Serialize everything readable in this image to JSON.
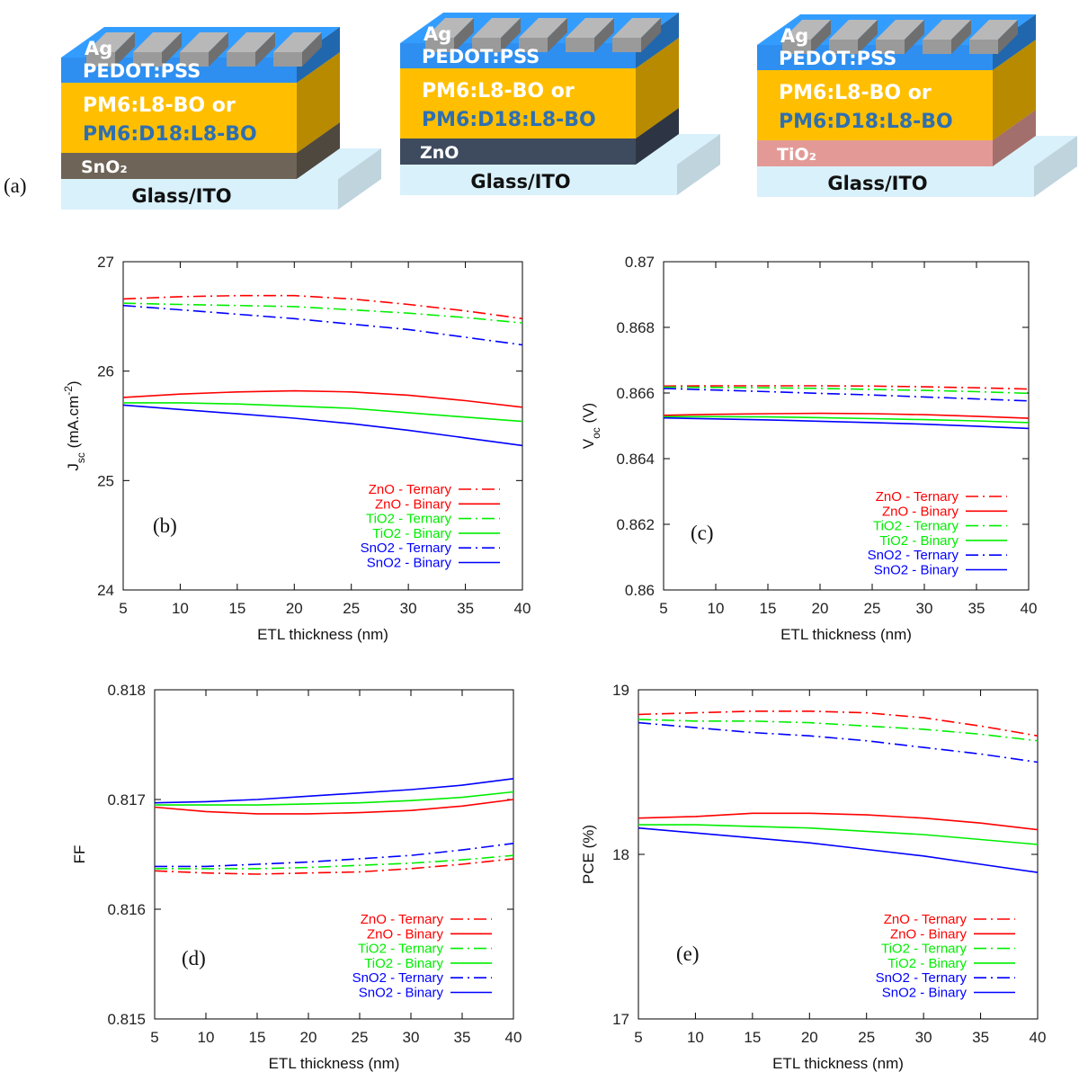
{
  "panel_a": {
    "label": "(a)",
    "devices": [
      {
        "etl": "SnO₂",
        "etl_color": "#6e6457",
        "etl_text_color": "#ffffff",
        "active_line1": "PM6:L8-BO or",
        "active_line2": "PM6:D18:L8-BO"
      },
      {
        "etl": "ZnO",
        "etl_color": "#3e4a5e",
        "etl_text_color": "#ffffff",
        "active_line1": "PM6:L8-BO or",
        "active_line2": "PM6:D18:L8-BO"
      },
      {
        "etl": "TiO₂",
        "etl_color": "#e39a96",
        "etl_text_color": "#ffffff",
        "active_line1": "PM6:L8-BO or",
        "active_line2": "PM6:D18:L8-BO"
      }
    ],
    "layers": {
      "top": "Ag",
      "htl": "PEDOT:PSS",
      "substrate": "Glass/ITO"
    },
    "colors": {
      "htl": "#2e8ff0",
      "active": "#ffbf00",
      "glass": "#d9f1fb",
      "ag": "#9a9a9a",
      "active_text2": "#2f6fb0"
    }
  },
  "series_styles": [
    {
      "key": "zno_t",
      "color": "#ff0000",
      "dash": "dashdot"
    },
    {
      "key": "zno_b",
      "color": "#ff0000",
      "dash": "solid"
    },
    {
      "key": "tio_t",
      "color": "#00ee00",
      "dash": "dashdot"
    },
    {
      "key": "tio_b",
      "color": "#00ee00",
      "dash": "solid"
    },
    {
      "key": "sno_t",
      "color": "#0000ff",
      "dash": "dashdot"
    },
    {
      "key": "sno_b",
      "color": "#0000ff",
      "dash": "solid"
    }
  ],
  "chart_data": [
    {
      "id": "b",
      "type": "line",
      "panel_label": "(b)",
      "xlabel": "ETL thickness (nm)",
      "ylabel_main": "J",
      "ylabel_sub": "sc",
      "ylabel_unit": " (mA.cm",
      "ylabel_sup": "-2",
      "ylabel_end": ")",
      "xlim": [
        5,
        40
      ],
      "ylim": [
        24,
        27
      ],
      "xticks": [
        5,
        10,
        15,
        20,
        25,
        30,
        35,
        40
      ],
      "xtick_labels": [
        "5",
        "10",
        "15",
        "20",
        "25",
        "30",
        "35",
        "40"
      ],
      "yticks": [
        24,
        25,
        26,
        27
      ],
      "ytick_labels": [
        "24",
        "25",
        "26",
        "27"
      ],
      "x": [
        5,
        10,
        15,
        20,
        25,
        30,
        35,
        40
      ],
      "series": [
        {
          "name": "ZnO - Ternary",
          "values": [
            26.66,
            26.68,
            26.69,
            26.69,
            26.66,
            26.61,
            26.55,
            26.48
          ]
        },
        {
          "name": "ZnO - Binary",
          "values": [
            25.76,
            25.79,
            25.81,
            25.82,
            25.81,
            25.78,
            25.73,
            25.67
          ]
        },
        {
          "name": "TiO2 - Ternary",
          "values": [
            26.62,
            26.61,
            26.6,
            26.59,
            26.56,
            26.53,
            26.49,
            26.44
          ]
        },
        {
          "name": "TiO2 - Binary",
          "values": [
            25.71,
            25.71,
            25.7,
            25.68,
            25.66,
            25.62,
            25.58,
            25.54
          ]
        },
        {
          "name": "SnO2 - Ternary",
          "values": [
            26.6,
            26.56,
            26.52,
            26.48,
            26.43,
            26.38,
            26.31,
            26.24
          ]
        },
        {
          "name": "SnO2 - Binary",
          "values": [
            25.69,
            25.65,
            25.61,
            25.57,
            25.52,
            25.46,
            25.39,
            25.32
          ]
        }
      ]
    },
    {
      "id": "c",
      "type": "line",
      "panel_label": "(c)",
      "xlabel": "ETL thickness (nm)",
      "ylabel_main": "V",
      "ylabel_sub": "oc",
      "ylabel_unit": " (V)",
      "ylabel_sup": "",
      "ylabel_end": "",
      "xlim": [
        5,
        40
      ],
      "ylim": [
        0.86,
        0.87
      ],
      "xticks": [
        5,
        10,
        15,
        20,
        25,
        30,
        35,
        40
      ],
      "xtick_labels": [
        "5",
        "10",
        "15",
        "20",
        "25",
        "30",
        "35",
        "40"
      ],
      "yticks": [
        0.86,
        0.862,
        0.864,
        0.866,
        0.868,
        0.87
      ],
      "ytick_labels": [
        "0.86",
        "0.862",
        "0.864",
        "0.866",
        "0.868",
        "0.87"
      ],
      "x": [
        5,
        10,
        15,
        20,
        25,
        30,
        35,
        40
      ],
      "series": [
        {
          "name": "ZnO - Ternary",
          "values": [
            0.86621,
            0.86622,
            0.86622,
            0.86622,
            0.86621,
            0.86619,
            0.86616,
            0.86612
          ]
        },
        {
          "name": "ZnO - Binary",
          "values": [
            0.86532,
            0.86535,
            0.86537,
            0.86538,
            0.86537,
            0.86534,
            0.86529,
            0.86523
          ]
        },
        {
          "name": "TiO2 - Ternary",
          "values": [
            0.86618,
            0.86617,
            0.86616,
            0.86614,
            0.86611,
            0.86608,
            0.86604,
            0.86599
          ]
        },
        {
          "name": "TiO2 - Binary",
          "values": [
            0.86528,
            0.86528,
            0.86527,
            0.86525,
            0.86522,
            0.86519,
            0.86515,
            0.8651
          ]
        },
        {
          "name": "SnO2 - Ternary",
          "values": [
            0.86614,
            0.86609,
            0.86604,
            0.86599,
            0.86594,
            0.86588,
            0.86582,
            0.86576
          ]
        },
        {
          "name": "SnO2 - Binary",
          "values": [
            0.86524,
            0.86521,
            0.86518,
            0.86514,
            0.8651,
            0.86505,
            0.86499,
            0.86492
          ]
        }
      ]
    },
    {
      "id": "d",
      "type": "line",
      "panel_label": "(d)",
      "xlabel": "ETL thickness (nm)",
      "ylabel_main": "FF",
      "ylabel_sub": "",
      "ylabel_unit": "",
      "ylabel_sup": "",
      "ylabel_end": "",
      "xlim": [
        5,
        40
      ],
      "ylim": [
        0.815,
        0.818
      ],
      "xticks": [
        5,
        10,
        15,
        20,
        25,
        30,
        35,
        40
      ],
      "xtick_labels": [
        "5",
        "10",
        "15",
        "20",
        "25",
        "30",
        "35",
        "40"
      ],
      "yticks": [
        0.815,
        0.816,
        0.817,
        0.818
      ],
      "ytick_labels": [
        "0.815",
        "0.816",
        "0.817",
        "0.818"
      ],
      "x": [
        5,
        10,
        15,
        20,
        25,
        30,
        35,
        40
      ],
      "series": [
        {
          "name": "ZnO - Ternary",
          "values": [
            0.81635,
            0.81633,
            0.81632,
            0.81633,
            0.81634,
            0.81637,
            0.81641,
            0.81646
          ]
        },
        {
          "name": "ZnO - Binary",
          "values": [
            0.81693,
            0.81689,
            0.81687,
            0.81687,
            0.81688,
            0.8169,
            0.81694,
            0.817
          ]
        },
        {
          "name": "TiO2 - Ternary",
          "values": [
            0.81637,
            0.81637,
            0.81637,
            0.81638,
            0.8164,
            0.81642,
            0.81645,
            0.81649
          ]
        },
        {
          "name": "TiO2 - Binary",
          "values": [
            0.81695,
            0.81695,
            0.81695,
            0.81696,
            0.81697,
            0.81699,
            0.81702,
            0.81707
          ]
        },
        {
          "name": "SnO2 - Ternary",
          "values": [
            0.81639,
            0.81639,
            0.81641,
            0.81643,
            0.81646,
            0.81649,
            0.81654,
            0.8166
          ]
        },
        {
          "name": "SnO2 - Binary",
          "values": [
            0.81697,
            0.81698,
            0.817,
            0.81703,
            0.81706,
            0.81709,
            0.81713,
            0.81719
          ]
        }
      ]
    },
    {
      "id": "e",
      "type": "line",
      "panel_label": "(e)",
      "xlabel": "ETL thickness (nm)",
      "ylabel_main": "PCE (%)",
      "ylabel_sub": "",
      "ylabel_unit": "",
      "ylabel_sup": "",
      "ylabel_end": "",
      "xlim": [
        5,
        40
      ],
      "ylim": [
        17,
        19
      ],
      "xticks": [
        5,
        10,
        15,
        20,
        25,
        30,
        35,
        40
      ],
      "xtick_labels": [
        "5",
        "10",
        "15",
        "20",
        "25",
        "30",
        "35",
        "40"
      ],
      "yticks": [
        17,
        18,
        19
      ],
      "ytick_labels": [
        "17",
        "18",
        "19"
      ],
      "x": [
        5,
        10,
        15,
        20,
        25,
        30,
        35,
        40
      ],
      "series": [
        {
          "name": "ZnO - Ternary",
          "values": [
            18.85,
            18.86,
            18.87,
            18.87,
            18.86,
            18.83,
            18.78,
            18.72
          ]
        },
        {
          "name": "ZnO - Binary",
          "values": [
            18.22,
            18.23,
            18.25,
            18.25,
            18.24,
            18.22,
            18.19,
            18.15
          ]
        },
        {
          "name": "TiO2 - Ternary",
          "values": [
            18.82,
            18.81,
            18.81,
            18.8,
            18.78,
            18.76,
            18.73,
            18.69
          ]
        },
        {
          "name": "TiO2 - Binary",
          "values": [
            18.18,
            18.18,
            18.17,
            18.16,
            18.14,
            18.12,
            18.09,
            18.06
          ]
        },
        {
          "name": "SnO2 - Ternary",
          "values": [
            18.8,
            18.77,
            18.74,
            18.72,
            18.69,
            18.65,
            18.61,
            18.56
          ]
        },
        {
          "name": "SnO2 - Binary",
          "values": [
            18.16,
            18.13,
            18.1,
            18.07,
            18.03,
            17.99,
            17.94,
            17.89
          ]
        }
      ]
    }
  ]
}
